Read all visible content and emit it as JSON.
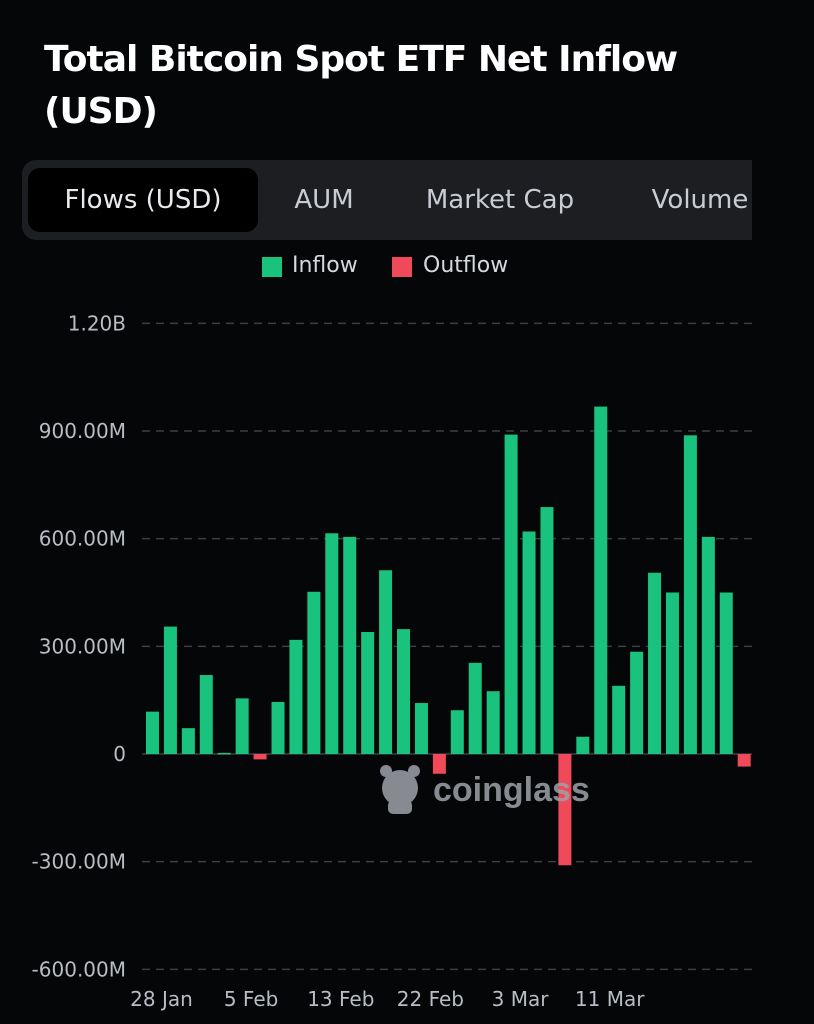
{
  "title": "Total Bitcoin Spot ETF Net Inflow (USD)",
  "tabs": [
    {
      "label": "Flows (USD)",
      "active": true
    },
    {
      "label": "AUM",
      "active": false
    },
    {
      "label": "Market Cap",
      "active": false
    },
    {
      "label": "Volume",
      "active": false
    }
  ],
  "watermark": "coinglass",
  "colors": {
    "inflow": "#19c37d",
    "outflow": "#f04a5a",
    "grid": "#3b3f45"
  },
  "chart_data": {
    "type": "bar",
    "legend": [
      "Inflow",
      "Outflow"
    ],
    "y_ticks": [
      {
        "value": 1200,
        "label": "1.20B"
      },
      {
        "value": 900,
        "label": "900.00M"
      },
      {
        "value": 600,
        "label": "600.00M"
      },
      {
        "value": 300,
        "label": "300.00M"
      },
      {
        "value": 0,
        "label": "0"
      },
      {
        "value": -300,
        "label": "-300.00M"
      },
      {
        "value": -600,
        "label": "-600.00M"
      }
    ],
    "ylim": [
      -600,
      1200
    ],
    "y_unit": "M USD",
    "grid": true,
    "x_ticks": [
      {
        "index": 0.5,
        "label": "28 Jan"
      },
      {
        "index": 5.5,
        "label": "5 Feb"
      },
      {
        "index": 10.5,
        "label": "13 Feb"
      },
      {
        "index": 15.5,
        "label": "22 Feb"
      },
      {
        "index": 20.5,
        "label": "3 Mar"
      },
      {
        "index": 25.5,
        "label": "11 Mar"
      }
    ],
    "values": [
      118,
      355,
      72,
      220,
      3,
      155,
      -15,
      145,
      318,
      452,
      615,
      605,
      340,
      512,
      348,
      142,
      -55,
      122,
      254,
      175,
      890,
      620,
      688,
      -310,
      48,
      968,
      190,
      285,
      505,
      450,
      888,
      605,
      450,
      -35
    ]
  }
}
